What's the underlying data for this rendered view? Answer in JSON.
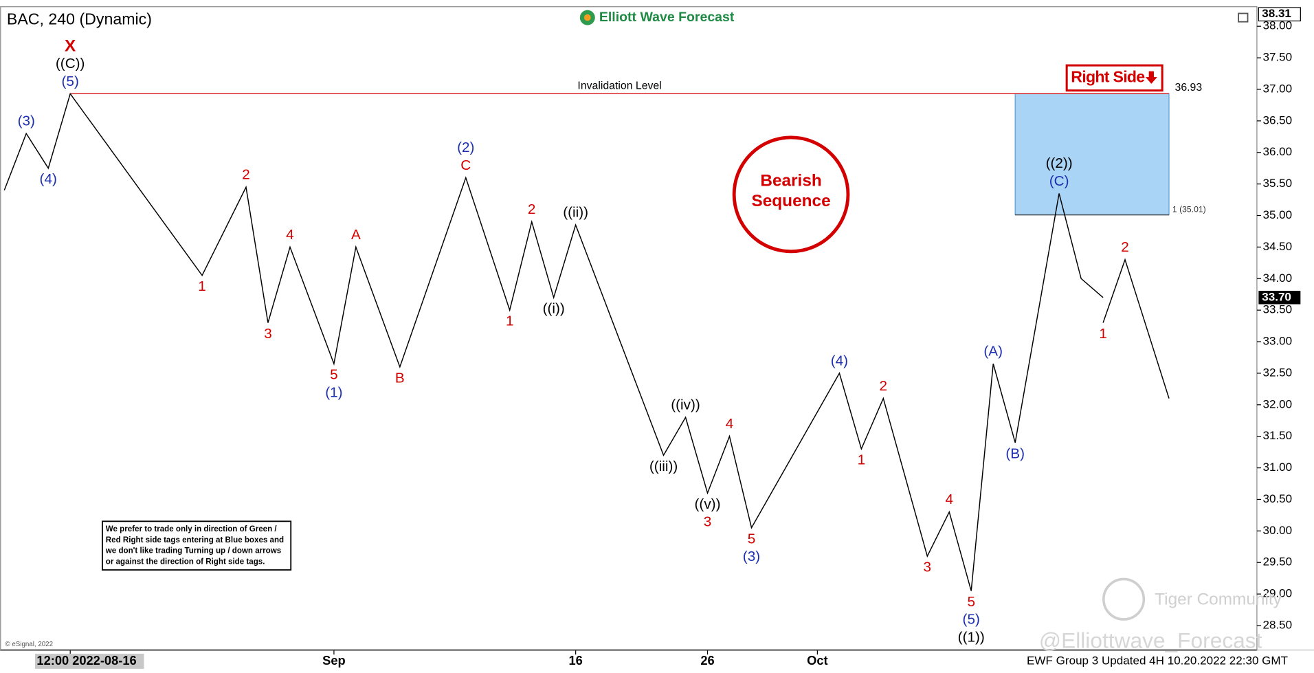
{
  "chart_data": {
    "type": "line",
    "title": "BAC, 240 (Dynamic)",
    "brand": "Elliott Wave Forecast",
    "x": [
      "2022-08-11",
      "2022-08-12",
      "2022-08-15",
      "2022-08-16",
      "2022-08-24",
      "2022-08-26",
      "2022-08-29",
      "2022-08-30",
      "2022-09-01",
      "2022-09-02",
      "2022-09-06",
      "2022-09-09",
      "2022-09-13",
      "2022-09-14",
      "2022-09-15",
      "2022-09-16",
      "2022-09-22",
      "2022-09-23",
      "2022-09-26",
      "2022-09-27",
      "2022-09-28",
      "2022-10-04",
      "2022-10-05",
      "2022-10-06",
      "2022-10-10",
      "2022-10-11",
      "2022-10-12",
      "2022-10-13",
      "2022-10-14",
      "2022-10-18",
      "2022-10-19",
      "2022-10-20"
    ],
    "values": [
      35.4,
      36.3,
      35.75,
      36.93,
      34.05,
      35.45,
      33.3,
      34.5,
      32.65,
      34.5,
      32.6,
      35.6,
      33.5,
      34.9,
      33.7,
      34.85,
      31.2,
      31.8,
      30.6,
      31.5,
      30.05,
      32.5,
      31.3,
      32.1,
      29.6,
      30.3,
      29.05,
      32.65,
      31.4,
      35.35,
      34.0,
      33.7
    ],
    "color": "#000000",
    "projection": {
      "x": [
        "2022-10-20",
        "2022-10-21",
        "2022-10-25"
      ],
      "values": [
        33.3,
        34.3,
        32.1
      ],
      "color": "#000000"
    },
    "xlim": [
      "2022-08-11",
      "2022-10-31"
    ],
    "xticks": [
      {
        "value": "2022-08-16",
        "label": "12:00 2022-08-16"
      },
      {
        "value": "2022-09-01",
        "label": "Sep"
      },
      {
        "value": "2022-09-16",
        "label": "16"
      },
      {
        "value": "2022-09-26",
        "label": "26"
      },
      {
        "value": "2022-10-03",
        "label": "Oct"
      }
    ],
    "ylim": [
      28.12,
      38.31
    ],
    "yticks": [
      {
        "value": 28.5,
        "label": "28.50"
      },
      {
        "value": 29,
        "label": "29.00"
      },
      {
        "value": 29.5,
        "label": "29.50"
      },
      {
        "value": 30,
        "label": "30.00"
      },
      {
        "value": 30.5,
        "label": "30.50"
      },
      {
        "value": 31,
        "label": "31.00"
      },
      {
        "value": 31.5,
        "label": "31.50"
      },
      {
        "value": 32,
        "label": "32.00"
      },
      {
        "value": 32.5,
        "label": "32.50"
      },
      {
        "value": 33,
        "label": "33.00"
      },
      {
        "value": 33.5,
        "label": "33.50"
      },
      {
        "value": 34,
        "label": "34.00"
      },
      {
        "value": 34.5,
        "label": "34.50"
      },
      {
        "value": 35,
        "label": "35.00"
      },
      {
        "value": 35.5,
        "label": "35.50"
      },
      {
        "value": 36,
        "label": "36.00"
      },
      {
        "value": 36.5,
        "label": "36.50"
      },
      {
        "value": 37,
        "label": "37.00"
      },
      {
        "value": 37.5,
        "label": "37.50"
      },
      {
        "value": 38,
        "label": "38.00"
      }
    ],
    "y_axis_side": "right",
    "grid": false,
    "last_price": {
      "value": 33.7,
      "label": "33.70"
    },
    "invalidation": {
      "label": "Invalidation Level",
      "value": 36.93,
      "x": [
        "2022-08-16",
        "2022-10-25"
      ],
      "color": "#d40000"
    },
    "box": {
      "label": "1 (35.01)",
      "low": 35.01,
      "high": 36.93,
      "x": [
        "2022-10-14",
        "2022-10-25"
      ],
      "color": "#a9d4f5"
    },
    "annotations": [
      {
        "x": "2022-08-12",
        "y": 36.3,
        "position": "above",
        "texts": [
          "(3)"
        ],
        "colors": [
          "#1c2fb0"
        ]
      },
      {
        "x": "2022-08-15",
        "y": 35.75,
        "position": "below",
        "texts": [
          "(4)"
        ],
        "colors": [
          "#1c2fb0"
        ]
      },
      {
        "x": "2022-08-16",
        "y": 36.93,
        "position": "above",
        "texts": [
          "X",
          "((C))",
          "(5)"
        ],
        "colors": [
          "#d40000",
          "#000000",
          "#1c2fb0"
        ]
      },
      {
        "x": "2022-08-24",
        "y": 34.05,
        "position": "below",
        "texts": [
          "1"
        ],
        "colors": [
          "#d40000"
        ]
      },
      {
        "x": "2022-08-26",
        "y": 35.45,
        "position": "above",
        "texts": [
          "2"
        ],
        "colors": [
          "#d40000"
        ]
      },
      {
        "x": "2022-08-29",
        "y": 33.3,
        "position": "below",
        "texts": [
          "3"
        ],
        "colors": [
          "#d40000"
        ]
      },
      {
        "x": "2022-08-30",
        "y": 34.5,
        "position": "above",
        "texts": [
          "4"
        ],
        "colors": [
          "#d40000"
        ]
      },
      {
        "x": "2022-09-01",
        "y": 32.65,
        "position": "below",
        "texts": [
          "5",
          "(1)"
        ],
        "colors": [
          "#d40000",
          "#1c2fb0"
        ]
      },
      {
        "x": "2022-09-02",
        "y": 34.5,
        "position": "above",
        "texts": [
          "A"
        ],
        "colors": [
          "#d40000"
        ]
      },
      {
        "x": "2022-09-06",
        "y": 32.6,
        "position": "below",
        "texts": [
          "B"
        ],
        "colors": [
          "#d40000"
        ]
      },
      {
        "x": "2022-09-09",
        "y": 35.6,
        "position": "above",
        "texts": [
          "(2)",
          "C"
        ],
        "colors": [
          "#1c2fb0",
          "#d40000"
        ]
      },
      {
        "x": "2022-09-13",
        "y": 33.5,
        "position": "below",
        "texts": [
          "1"
        ],
        "colors": [
          "#d40000"
        ]
      },
      {
        "x": "2022-09-14",
        "y": 34.9,
        "position": "above",
        "texts": [
          "2"
        ],
        "colors": [
          "#d40000"
        ]
      },
      {
        "x": "2022-09-15",
        "y": 33.7,
        "position": "below",
        "texts": [
          "((i))"
        ],
        "colors": [
          "#000000"
        ]
      },
      {
        "x": "2022-09-16",
        "y": 34.85,
        "position": "above",
        "texts": [
          "((ii))"
        ],
        "colors": [
          "#000000"
        ]
      },
      {
        "x": "2022-09-22",
        "y": 31.2,
        "position": "below",
        "texts": [
          "((iii))"
        ],
        "colors": [
          "#000000"
        ]
      },
      {
        "x": "2022-09-23",
        "y": 31.8,
        "position": "above",
        "texts": [
          "((iv))"
        ],
        "colors": [
          "#000000"
        ]
      },
      {
        "x": "2022-09-26",
        "y": 30.6,
        "position": "below",
        "texts": [
          "((v))",
          "3"
        ],
        "colors": [
          "#000000",
          "#d40000"
        ]
      },
      {
        "x": "2022-09-27",
        "y": 31.5,
        "position": "above",
        "texts": [
          "4"
        ],
        "colors": [
          "#d40000"
        ]
      },
      {
        "x": "2022-09-28",
        "y": 30.05,
        "position": "below",
        "texts": [
          "5",
          "(3)"
        ],
        "colors": [
          "#d40000",
          "#1c2fb0"
        ]
      },
      {
        "x": "2022-10-04",
        "y": 32.5,
        "position": "above",
        "texts": [
          "(4)"
        ],
        "colors": [
          "#1c2fb0"
        ]
      },
      {
        "x": "2022-10-05",
        "y": 31.3,
        "position": "below",
        "texts": [
          "1"
        ],
        "colors": [
          "#d40000"
        ]
      },
      {
        "x": "2022-10-06",
        "y": 32.1,
        "position": "above",
        "texts": [
          "2"
        ],
        "colors": [
          "#d40000"
        ]
      },
      {
        "x": "2022-10-10",
        "y": 29.6,
        "position": "below",
        "texts": [
          "3"
        ],
        "colors": [
          "#d40000"
        ]
      },
      {
        "x": "2022-10-11",
        "y": 30.3,
        "position": "above",
        "texts": [
          "4"
        ],
        "colors": [
          "#d40000"
        ]
      },
      {
        "x": "2022-10-12",
        "y": 29.05,
        "position": "below",
        "texts": [
          "5",
          "(5)",
          "((1))"
        ],
        "colors": [
          "#d40000",
          "#1c2fb0",
          "#000000"
        ]
      },
      {
        "x": "2022-10-13",
        "y": 32.65,
        "position": "above",
        "texts": [
          "(A)"
        ],
        "colors": [
          "#1c2fb0"
        ]
      },
      {
        "x": "2022-10-14",
        "y": 31.4,
        "position": "below",
        "texts": [
          "(B)"
        ],
        "colors": [
          "#1c2fb0"
        ]
      },
      {
        "x": "2022-10-18",
        "y": 35.35,
        "position": "above",
        "texts": [
          "((2))",
          "(C)"
        ],
        "colors": [
          "#000000",
          "#1c2fb0"
        ]
      },
      {
        "x": "2022-10-20",
        "y": 33.3,
        "position": "below",
        "texts": [
          "1"
        ],
        "colors": [
          "#d40000"
        ]
      },
      {
        "x": "2022-10-21",
        "y": 34.3,
        "position": "above",
        "texts": [
          "2"
        ],
        "colors": [
          "#d40000"
        ]
      }
    ],
    "badge": "Bearish Sequence",
    "right_side_tag": "Right Side",
    "note": "We prefer to trade only in direction of Green / Red Right side tags entering at Blue boxes and we don't like trading Turning up / down arrows or against the direction of Right side tags.",
    "footer": "EWF Group 3 Updated 4H 10.20.2022 22:30 GMT",
    "copyright": "© eSignal, 2022",
    "watermark": "Tiger Community",
    "handle": "@Elliottwave_Forecast"
  }
}
